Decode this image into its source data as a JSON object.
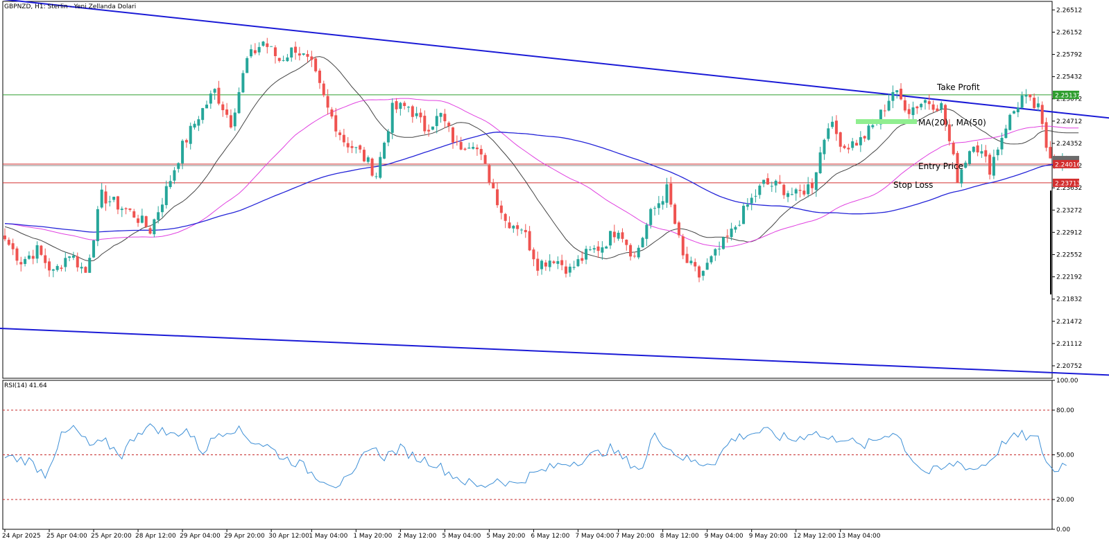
{
  "header": {
    "symbol_label": "GBPNZD, H1:  Sterlin - Yeni Zellanda Dolari",
    "rsi_label": "RSI(14) 41.64"
  },
  "annotations": {
    "take_profit": "Take Profit",
    "ma_legend": "MA(20) , MA(50)",
    "entry": "Entry Price",
    "stop": "Stop Loss"
  },
  "colors": {
    "bull": "#26a69a",
    "bear": "#ef5350",
    "ma20": "#444444",
    "ma50": "#e040e0",
    "ma100": "#2424d8",
    "trend": "#1a1ad6",
    "take_profit": "#2e9e2e",
    "entry": "#d32f2f",
    "stop": "#d32f2f",
    "rsi": "#3d8fd6",
    "legend_bar": "#90ee90"
  },
  "chart_data": [
    {
      "type": "candlestick",
      "title": "GBPNZD, H1:  Sterlin - Yeni Zellanda Dolari",
      "ylim": [
        2.2055,
        2.2665
      ],
      "y_ticks": [
        "2.26512",
        "2.26152",
        "2.25792",
        "2.25432",
        "2.25072",
        "2.24712",
        "2.24352",
        "2.23992",
        "2.23632",
        "2.23272",
        "2.22912",
        "2.22552",
        "2.22192",
        "2.21832",
        "2.21472",
        "2.21112",
        "2.20752"
      ],
      "x_tick_labels": [
        "24 Apr 2025",
        "25 Apr 04:00",
        "25 Apr 20:00",
        "28 Apr 12:00",
        "29 Apr 04:00",
        "29 Apr 20:00",
        "30 Apr 12:00",
        "1 May 04:00",
        "1 May 20:00",
        "2 May 12:00",
        "5 May 04:00",
        "5 May 20:00",
        "6 May 12:00",
        "7 May 04:00",
        "7 May 20:00",
        "8 May 12:00",
        "9 May 04:00",
        "9 May 20:00",
        "12 May 12:00",
        "13 May 04:00"
      ],
      "price_levels": [
        {
          "name": "Take Profit",
          "value": 2.25137,
          "label": "2.25137"
        },
        {
          "name": "Entry Price",
          "value": 2.24016,
          "label": "2.24016"
        },
        {
          "name": "Stop Loss",
          "value": 2.23713,
          "label": "2.23713"
        }
      ],
      "path_points": [
        [
          0,
          2.228
        ],
        [
          4,
          2.2245
        ],
        [
          8,
          2.2262
        ],
        [
          12,
          2.2225
        ],
        [
          16,
          2.2258
        ],
        [
          20,
          2.2226
        ],
        [
          24,
          2.235
        ],
        [
          28,
          2.2335
        ],
        [
          32,
          2.232
        ],
        [
          36,
          2.2295
        ],
        [
          40,
          2.236
        ],
        [
          44,
          2.243
        ],
        [
          48,
          2.248
        ],
        [
          52,
          2.252
        ],
        [
          56,
          2.247
        ],
        [
          60,
          2.257
        ],
        [
          64,
          2.26
        ],
        [
          68,
          2.257
        ],
        [
          72,
          2.259
        ],
        [
          76,
          2.256
        ],
        [
          80,
          2.249
        ],
        [
          84,
          2.244
        ],
        [
          88,
          2.242
        ],
        [
          92,
          2.2385
        ],
        [
          96,
          2.249
        ],
        [
          100,
          2.2495
        ],
        [
          104,
          2.246
        ],
        [
          108,
          2.248
        ],
        [
          112,
          2.243
        ],
        [
          116,
          2.244
        ],
        [
          120,
          2.238
        ],
        [
          124,
          2.231
        ],
        [
          128,
          2.23
        ],
        [
          132,
          2.224
        ],
        [
          136,
          2.225
        ],
        [
          140,
          2.223
        ],
        [
          144,
          2.2255
        ],
        [
          148,
          2.227
        ],
        [
          152,
          2.23
        ],
        [
          156,
          2.225
        ],
        [
          160,
          2.232
        ],
        [
          164,
          2.236
        ],
        [
          168,
          2.225
        ],
        [
          172,
          2.222
        ],
        [
          176,
          2.2255
        ],
        [
          180,
          2.229
        ],
        [
          184,
          2.2335
        ],
        [
          188,
          2.237
        ],
        [
          192,
          2.2365
        ],
        [
          196,
          2.235
        ],
        [
          200,
          2.237
        ],
        [
          204,
          2.247
        ],
        [
          208,
          2.243
        ],
        [
          212,
          2.244
        ],
        [
          216,
          2.247
        ],
        [
          220,
          2.252
        ],
        [
          224,
          2.249
        ],
        [
          228,
          2.2505
        ],
        [
          232,
          2.2495
        ],
        [
          236,
          2.238
        ],
        [
          240,
          2.244
        ],
        [
          244,
          2.2395
        ],
        [
          248,
          2.2465
        ],
        [
          252,
          2.251
        ],
        [
          256,
          2.249
        ],
        [
          258,
          2.243
        ],
        [
          260,
          2.241
        ],
        [
          263,
          2.2405
        ]
      ],
      "series": [
        {
          "name": "MA(20)",
          "type": "line"
        },
        {
          "name": "MA(50)",
          "type": "line"
        },
        {
          "type": "line"
        }
      ],
      "trendlines": [
        {
          "points": [
            [
              -10,
              2.2675
            ],
            [
              274,
              2.2476
            ]
          ]
        },
        {
          "points": [
            [
              -2,
              2.2136
            ],
            [
              274,
              2.206
            ]
          ]
        }
      ]
    },
    {
      "type": "line",
      "title": "RSI(14) 41.64",
      "ylim": [
        0,
        100
      ],
      "y_ticks": [
        "100.00",
        "80.00",
        "50.00",
        "20.00",
        "0.00"
      ],
      "levels": [
        80,
        50,
        20
      ],
      "value": 41.64,
      "path_points": [
        [
          0,
          49
        ],
        [
          6,
          46
        ],
        [
          10,
          37
        ],
        [
          14,
          62
        ],
        [
          17,
          68
        ],
        [
          21,
          56
        ],
        [
          25,
          58
        ],
        [
          29,
          50
        ],
        [
          33,
          66
        ],
        [
          37,
          69
        ],
        [
          41,
          63
        ],
        [
          45,
          67
        ],
        [
          49,
          52
        ],
        [
          53,
          65
        ],
        [
          57,
          68
        ],
        [
          61,
          60
        ],
        [
          65,
          56
        ],
        [
          69,
          48
        ],
        [
          73,
          44
        ],
        [
          77,
          36
        ],
        [
          82,
          30
        ],
        [
          86,
          34
        ],
        [
          90,
          56
        ],
        [
          94,
          49
        ],
        [
          98,
          54
        ],
        [
          102,
          48
        ],
        [
          106,
          45
        ],
        [
          110,
          38
        ],
        [
          114,
          32
        ],
        [
          118,
          28
        ],
        [
          122,
          34
        ],
        [
          126,
          30
        ],
        [
          130,
          36
        ],
        [
          134,
          40
        ],
        [
          138,
          44
        ],
        [
          142,
          46
        ],
        [
          146,
          50
        ],
        [
          150,
          54
        ],
        [
          154,
          46
        ],
        [
          158,
          40
        ],
        [
          161,
          66
        ],
        [
          164,
          55
        ],
        [
          168,
          48
        ],
        [
          172,
          44
        ],
        [
          176,
          46
        ],
        [
          180,
          60
        ],
        [
          184,
          64
        ],
        [
          188,
          66
        ],
        [
          192,
          62
        ],
        [
          196,
          60
        ],
        [
          200,
          66
        ],
        [
          204,
          60
        ],
        [
          208,
          62
        ],
        [
          212,
          55
        ],
        [
          216,
          60
        ],
        [
          220,
          66
        ],
        [
          222,
          60
        ],
        [
          224,
          50
        ],
        [
          228,
          38
        ],
        [
          232,
          40
        ],
        [
          236,
          45
        ],
        [
          240,
          40
        ],
        [
          244,
          46
        ],
        [
          248,
          60
        ],
        [
          252,
          63
        ],
        [
          256,
          60
        ],
        [
          258,
          46
        ],
        [
          260,
          38
        ],
        [
          262,
          44
        ],
        [
          264,
          41.64
        ]
      ]
    }
  ]
}
